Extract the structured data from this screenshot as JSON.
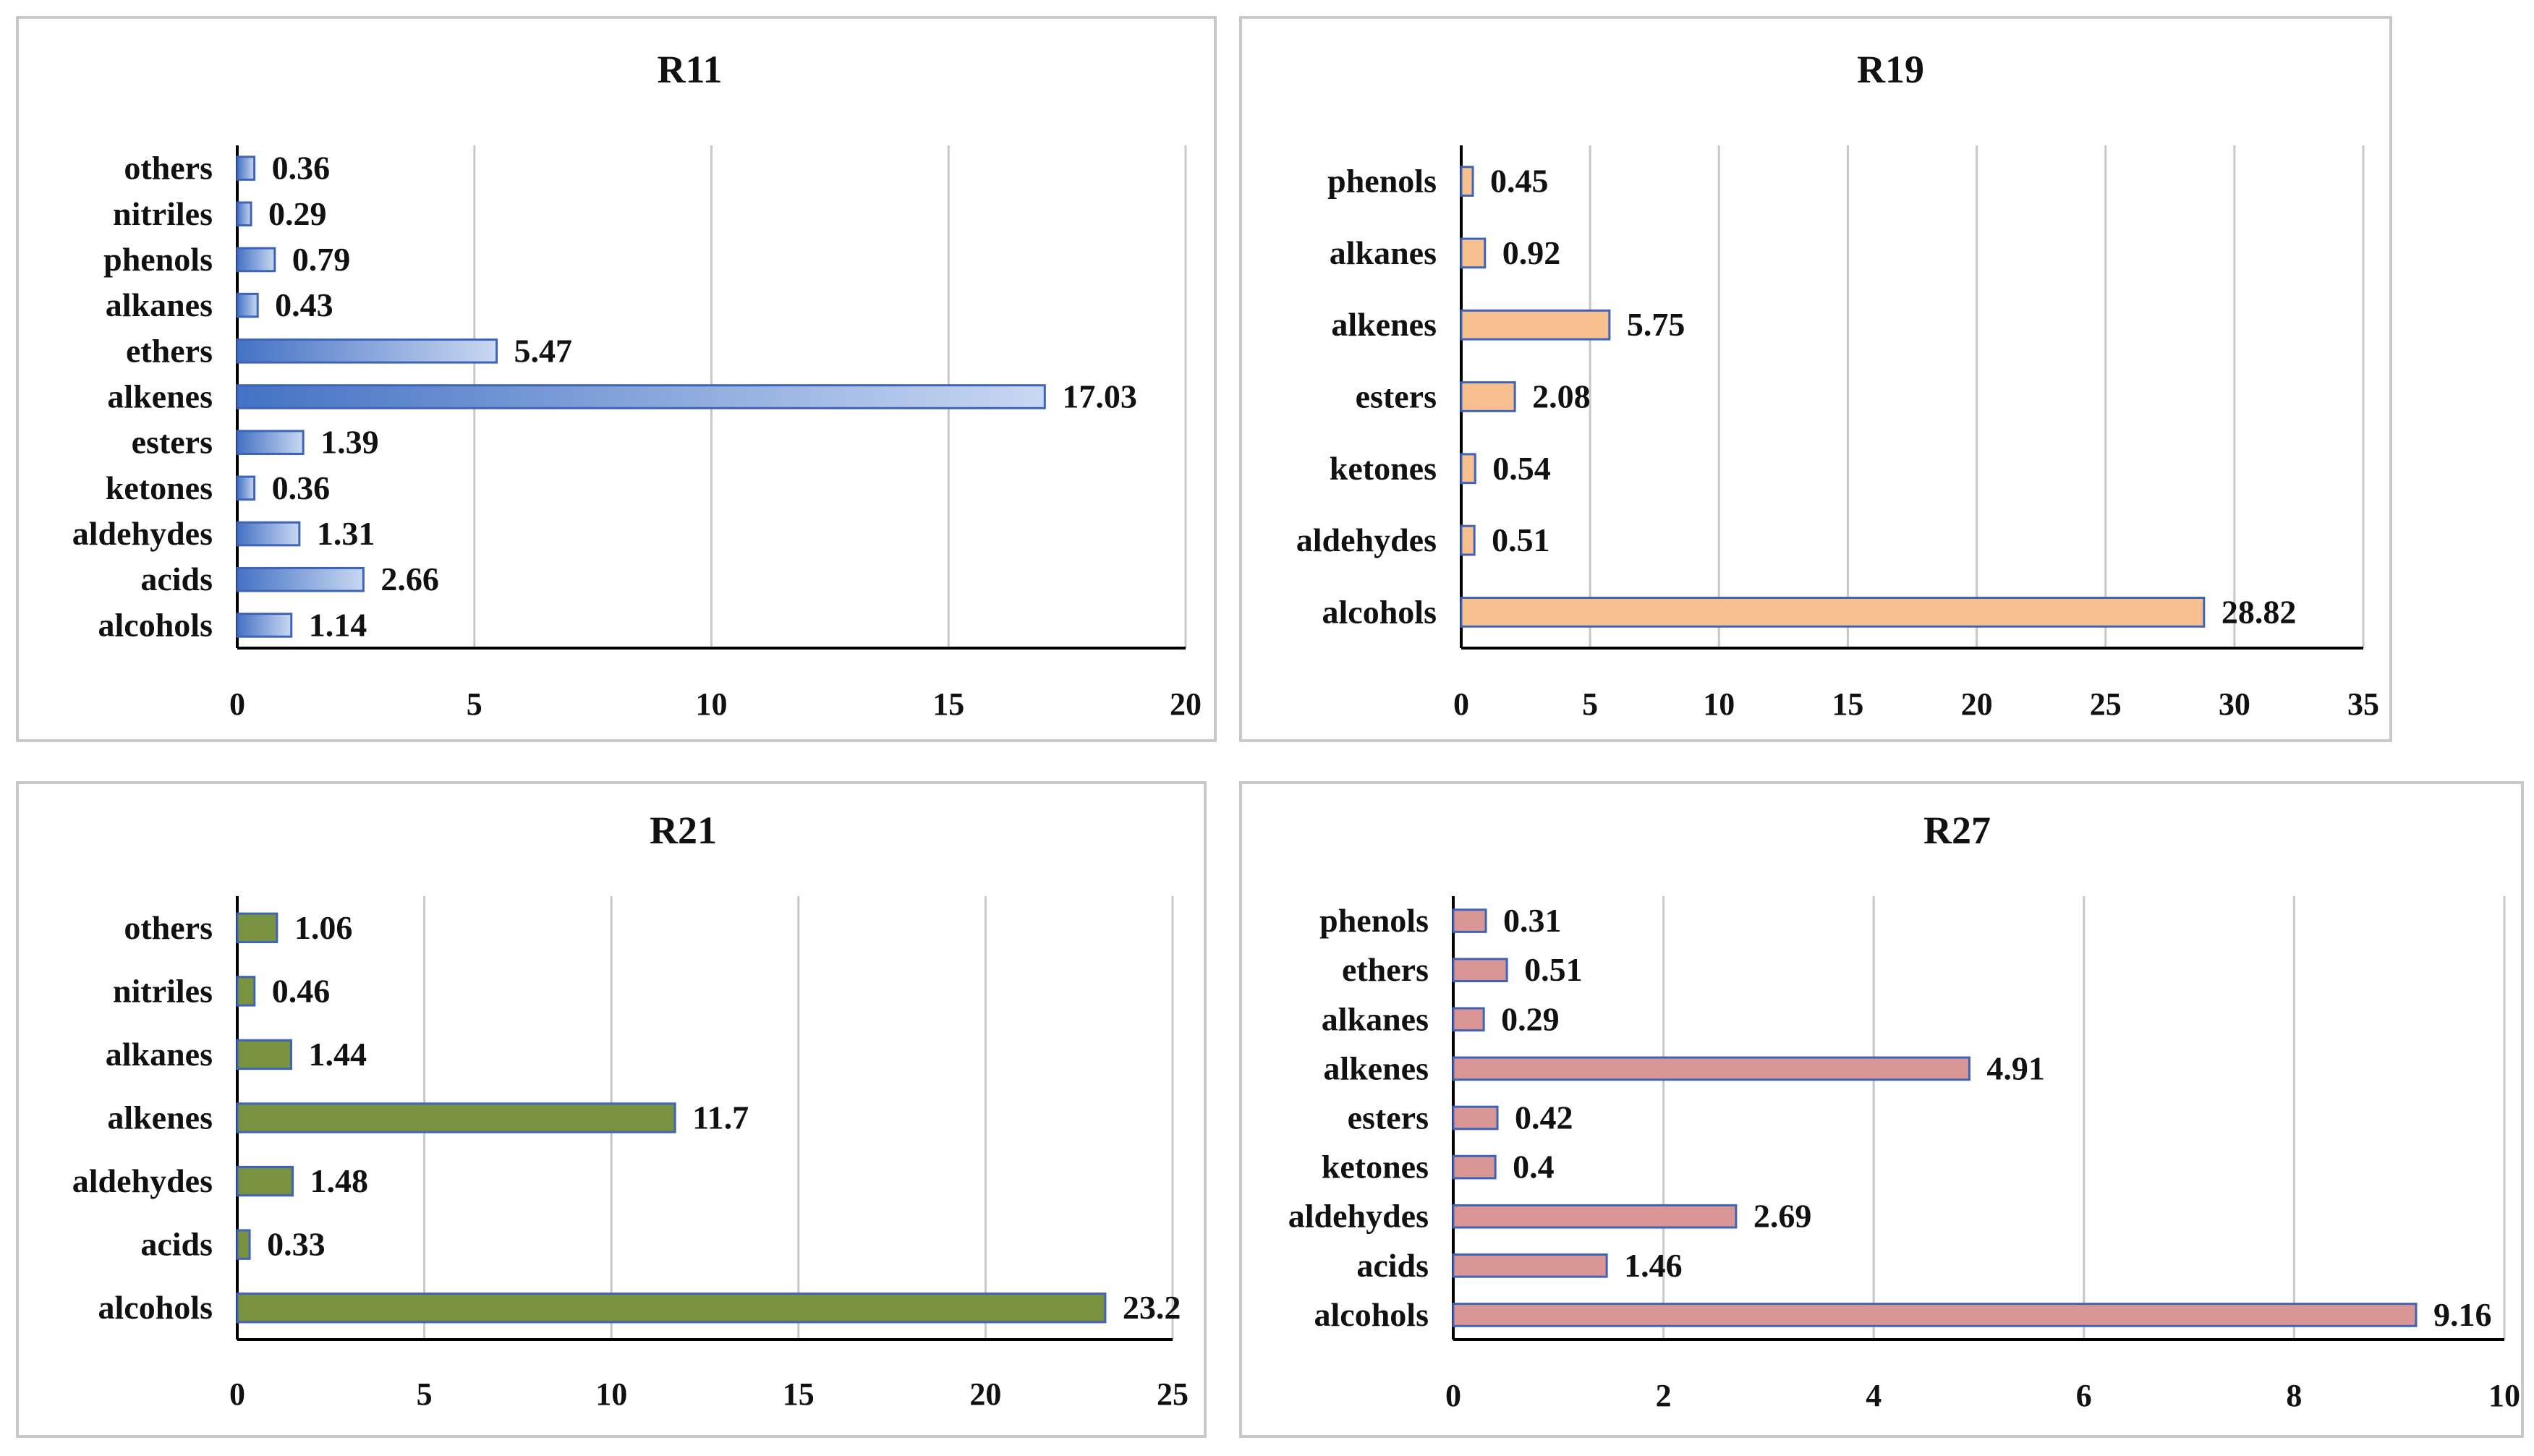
{
  "chart_data": [
    {
      "type": "bar",
      "orientation": "horizontal",
      "title": "R11",
      "categories": [
        "others",
        "nitriles",
        "phenols",
        "alkanes",
        "ethers",
        "alkenes",
        "esters",
        "ketones",
        "aldehydes",
        "acids",
        "alcohols"
      ],
      "values": [
        0.36,
        0.29,
        0.79,
        0.43,
        5.47,
        17.03,
        1.39,
        0.36,
        1.31,
        2.66,
        1.14
      ],
      "labels": [
        "0.36",
        "0.29",
        "0.79",
        "0.43",
        "5.47",
        "17.03",
        "1.39",
        "0.36",
        "1.31",
        "2.66",
        "1.14"
      ],
      "xlim": [
        0,
        20
      ],
      "ticks": [
        "0",
        "5",
        "10",
        "15",
        "20"
      ],
      "tick_values": [
        0,
        5,
        10,
        15,
        20
      ],
      "grid": true,
      "style": "gradient",
      "color": "#4472c4",
      "color_light": "#c9d8f2",
      "xlabel": "",
      "ylabel": ""
    },
    {
      "type": "bar",
      "orientation": "horizontal",
      "title": "R19",
      "categories": [
        "phenols",
        "alkanes",
        "alkenes",
        "esters",
        "ketones",
        "aldehydes",
        "alcohols"
      ],
      "values": [
        0.45,
        0.92,
        5.75,
        2.08,
        0.54,
        0.51,
        28.82
      ],
      "labels": [
        "0.45",
        "0.92",
        "5.75",
        "2.08",
        "0.54",
        "0.51",
        "28.82"
      ],
      "xlim": [
        0,
        35
      ],
      "ticks": [
        "0",
        "5",
        "10",
        "15",
        "20",
        "25",
        "30",
        "35"
      ],
      "tick_values": [
        0,
        5,
        10,
        15,
        20,
        25,
        30,
        35
      ],
      "grid": true,
      "style": "solid",
      "color": "#f8c08f",
      "xlabel": "",
      "ylabel": ""
    },
    {
      "type": "bar",
      "orientation": "horizontal",
      "title": "R21",
      "categories": [
        "others",
        "nitriles",
        "alkanes",
        "alkenes",
        "aldehydes",
        "acids",
        "alcohols"
      ],
      "values": [
        1.06,
        0.46,
        1.44,
        11.7,
        1.48,
        0.33,
        23.2
      ],
      "labels": [
        "1.06",
        "0.46",
        "1.44",
        "11.7",
        "1.48",
        "0.33",
        "23.2"
      ],
      "xlim": [
        0,
        25
      ],
      "ticks": [
        "0",
        "5",
        "10",
        "15",
        "20",
        "25"
      ],
      "tick_values": [
        0,
        5,
        10,
        15,
        20,
        25
      ],
      "grid": true,
      "style": "solid",
      "color": "#78923f",
      "xlabel": "",
      "ylabel": ""
    },
    {
      "type": "bar",
      "orientation": "horizontal",
      "title": "R27",
      "categories": [
        "phenols",
        "ethers",
        "alkanes",
        "alkenes",
        "esters",
        "ketones",
        "aldehydes",
        "acids",
        "alcohols"
      ],
      "values": [
        0.31,
        0.51,
        0.29,
        4.91,
        0.42,
        0.4,
        2.69,
        1.46,
        9.16
      ],
      "labels": [
        "0.31",
        "0.51",
        "0.29",
        "4.91",
        "0.42",
        "0.4",
        "2.69",
        "1.46",
        "9.16"
      ],
      "xlim": [
        0,
        10
      ],
      "ticks": [
        "0",
        "2",
        "4",
        "6",
        "8",
        "10"
      ],
      "tick_values": [
        0,
        2,
        4,
        6,
        8,
        10
      ],
      "grid": true,
      "style": "solid",
      "color": "#da9694",
      "xlabel": "",
      "ylabel": ""
    }
  ],
  "colors": {
    "bar_outline": "#3f63b8",
    "grid": "#c8c8c8",
    "axis": "#000000"
  }
}
